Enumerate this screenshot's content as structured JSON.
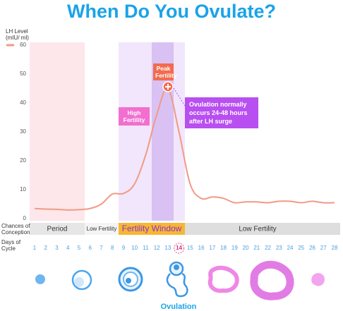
{
  "chart_data": {
    "type": "line",
    "title": "When Do You Ovulate?",
    "y_label": "LH Level (mIU/ ml)",
    "x": [
      1,
      2,
      3,
      4,
      5,
      6,
      7,
      8,
      9,
      10,
      11,
      12,
      13,
      14,
      15,
      16,
      17,
      18,
      19,
      20,
      21,
      22,
      23,
      24,
      25,
      26,
      27,
      28
    ],
    "xlim": [
      1,
      28
    ],
    "series": [
      {
        "color": "#f19a85",
        "values": [
          3.5,
          3.3,
          3.2,
          3.0,
          3.1,
          3.5,
          5,
          8.5,
          8.7,
          12,
          22,
          36,
          45,
          30,
          12,
          7,
          7.5,
          7,
          5.5,
          5.8,
          5.8,
          5.5,
          6,
          6,
          5.5,
          6,
          5.5,
          5.5
        ]
      }
    ],
    "ylim": [
      0,
      60
    ],
    "yticks": [
      0,
      10,
      20,
      30,
      40,
      50,
      60
    ],
    "grid": false,
    "highlight_day": 14,
    "annotations": {
      "peak": "Peak Fertility",
      "high": "High Fertility",
      "ovulation_note": "Ovulation normally occurs 24-48 hours after LH surge",
      "ovulation": "Ovulation"
    },
    "conception_label": "Chances of Conception",
    "conception_zones": [
      "Period",
      "Low Fertility",
      "Fertility Window",
      "Low Fertility"
    ],
    "days_label": "Days of Cycle"
  }
}
